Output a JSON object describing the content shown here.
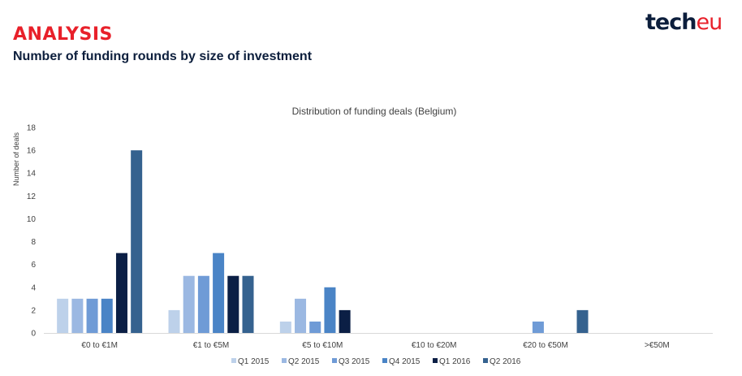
{
  "header": {
    "title": "ANALYSIS",
    "subtitle": "Number of funding rounds by size of investment"
  },
  "logo": {
    "main": "tech",
    "accent": "eu"
  },
  "chart_data": {
    "type": "bar",
    "title": "Distribution of funding deals (Belgium)",
    "ylabel": "Number of deals",
    "xlabel": "",
    "ylim": [
      0,
      18
    ],
    "yticks": [
      0,
      2,
      4,
      6,
      8,
      10,
      12,
      14,
      16,
      18
    ],
    "grid": false,
    "legend_position": "bottom",
    "categories": [
      "€0 to €1M",
      "€1 to €5M",
      "€5 to €10M",
      "€10 to €20M",
      "€20 to €50M",
      ">€50M"
    ],
    "series": [
      {
        "name": "Q1 2015",
        "color": "#bdd1ea",
        "values": [
          3,
          2,
          1,
          0,
          0,
          0
        ]
      },
      {
        "name": "Q2 2015",
        "color": "#9bb8e2",
        "values": [
          3,
          5,
          3,
          0,
          0,
          0
        ]
      },
      {
        "name": "Q3 2015",
        "color": "#6f9bd6",
        "values": [
          3,
          5,
          1,
          0,
          1,
          0
        ]
      },
      {
        "name": "Q4 2015",
        "color": "#4a84c6",
        "values": [
          3,
          7,
          4,
          0,
          0,
          0
        ]
      },
      {
        "name": "Q1 2016",
        "color": "#0b1f45",
        "values": [
          7,
          5,
          2,
          0,
          0,
          0
        ]
      },
      {
        "name": "Q2 2016",
        "color": "#35628f",
        "values": [
          16,
          5,
          0,
          0,
          2,
          0
        ]
      }
    ]
  }
}
